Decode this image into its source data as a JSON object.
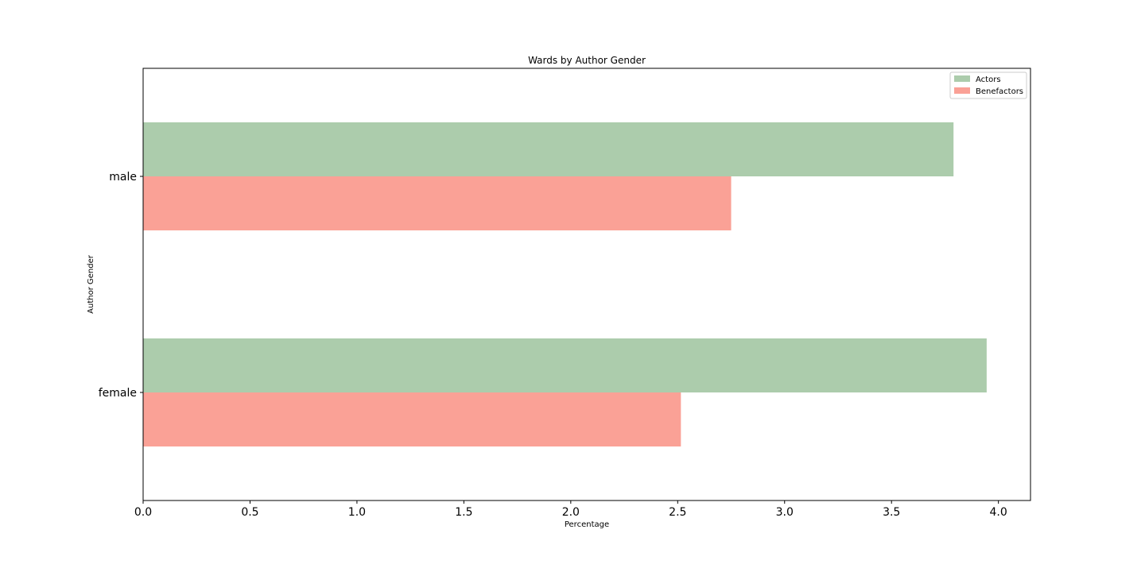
{
  "chart_data": {
    "type": "bar",
    "orientation": "horizontal",
    "title": "Wards by Author Gender",
    "xlabel": "Percentage",
    "ylabel": "Author Gender",
    "categories": [
      "female",
      "male"
    ],
    "series": [
      {
        "name": "Actors",
        "color": "#acccac",
        "values": [
          3.945,
          3.79
        ]
      },
      {
        "name": "Benefactors",
        "color": "#faa196",
        "values": [
          2.515,
          2.75
        ]
      }
    ],
    "xlim": [
      0,
      4.15
    ],
    "xticks": [
      0.0,
      0.5,
      1.0,
      1.5,
      2.0,
      2.5,
      3.0,
      3.5,
      4.0
    ],
    "xtick_labels": [
      "0.0",
      "0.5",
      "1.0",
      "1.5",
      "2.0",
      "2.5",
      "3.0",
      "3.5",
      "4.0"
    ],
    "grid": false,
    "legend_position": "top-right"
  }
}
